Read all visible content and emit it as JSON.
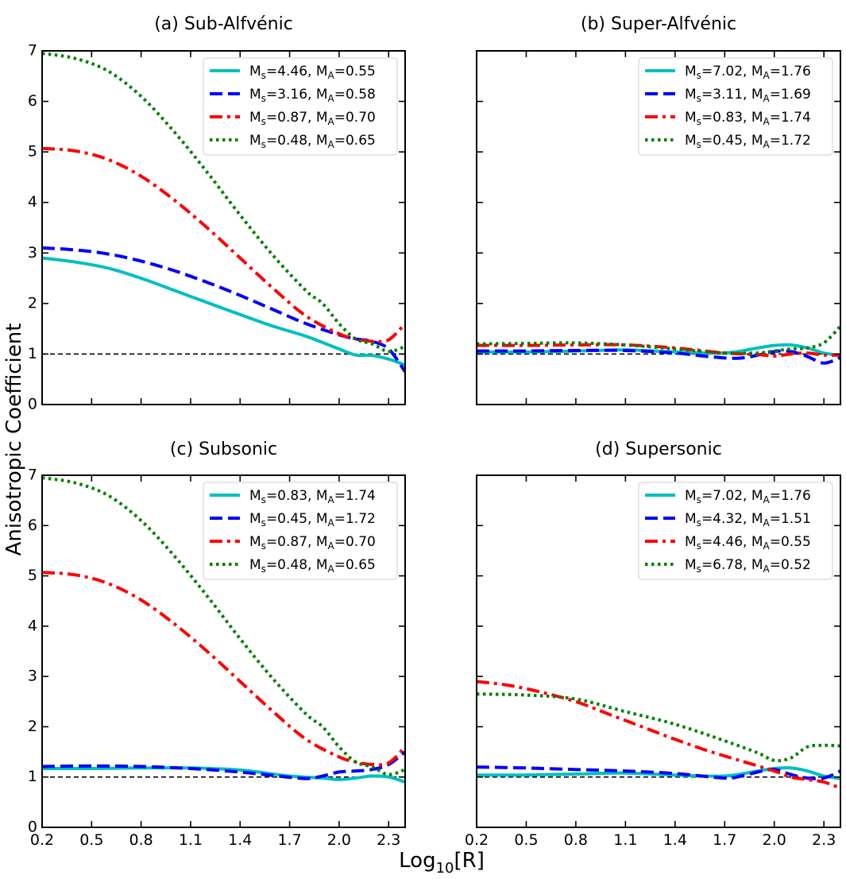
{
  "figure": {
    "ylabel": "Anisotropic Coefficient",
    "xlabel_main": "Log",
    "xlabel_sub": "10",
    "xlabel_tail": "[R]"
  },
  "chart_data": [
    {
      "type": "line",
      "title": "(a) Sub-Alfvénic",
      "xlim": [
        0.2,
        2.4
      ],
      "ylim": [
        0,
        7
      ],
      "xticks": [
        "0.2",
        "0.5",
        "0.8",
        "1.1",
        "1.4",
        "1.7",
        "2.0",
        "2.3"
      ],
      "yticks": [
        "0",
        "1",
        "2",
        "3",
        "4",
        "5",
        "6",
        "7"
      ],
      "show_xticklabels": false,
      "show_yticklabels": true,
      "reference_line_y": 1,
      "legend_position": "top-right",
      "series": [
        {
          "name": "M_s=4.46, M_A=0.55",
          "ms": "4.46",
          "ma": "0.55",
          "color": "#00bfbf",
          "style": "solid",
          "x": [
            0.2,
            0.4,
            0.6,
            0.8,
            1.0,
            1.2,
            1.4,
            1.6,
            1.8,
            2.0,
            2.1,
            2.2,
            2.3,
            2.4
          ],
          "y": [
            2.9,
            2.82,
            2.7,
            2.5,
            2.26,
            2.02,
            1.78,
            1.55,
            1.35,
            1.1,
            0.98,
            0.97,
            0.9,
            0.78
          ]
        },
        {
          "name": "M_s=3.16, M_A=0.58",
          "ms": "3.16",
          "ma": "0.58",
          "color": "#0000ff",
          "style": "dashed",
          "x": [
            0.2,
            0.4,
            0.6,
            0.8,
            1.0,
            1.2,
            1.4,
            1.6,
            1.8,
            2.0,
            2.1,
            2.2,
            2.3,
            2.4
          ],
          "y": [
            3.1,
            3.06,
            2.98,
            2.84,
            2.65,
            2.42,
            2.16,
            1.88,
            1.6,
            1.38,
            1.3,
            1.25,
            1.1,
            0.65
          ]
        },
        {
          "name": "M_s=0.87, M_A=0.70",
          "ms": "0.87",
          "ma": "0.70",
          "color": "#ff0000",
          "style": "dashdot",
          "x": [
            0.2,
            0.4,
            0.6,
            0.8,
            1.0,
            1.2,
            1.4,
            1.6,
            1.8,
            2.0,
            2.1,
            2.2,
            2.3,
            2.4
          ],
          "y": [
            5.07,
            5.02,
            4.85,
            4.52,
            4.05,
            3.5,
            2.9,
            2.3,
            1.75,
            1.4,
            1.3,
            1.25,
            1.28,
            1.6
          ]
        },
        {
          "name": "M_s=0.48, M_A=0.65",
          "ms": "0.48",
          "ma": "0.65",
          "color": "#008000",
          "style": "dotted",
          "x": [
            0.2,
            0.4,
            0.6,
            0.8,
            1.0,
            1.2,
            1.4,
            1.6,
            1.8,
            1.9,
            2.0,
            2.1,
            2.2,
            2.3,
            2.4
          ],
          "y": [
            6.95,
            6.85,
            6.6,
            6.1,
            5.4,
            4.6,
            3.75,
            2.95,
            2.25,
            2.0,
            1.6,
            1.3,
            1.2,
            1.05,
            1.15
          ]
        }
      ]
    },
    {
      "type": "line",
      "title": "(b) Super-Alfvénic",
      "xlim": [
        0.2,
        2.4
      ],
      "ylim": [
        0,
        7
      ],
      "xticks": [
        "0.2",
        "0.5",
        "0.8",
        "1.1",
        "1.4",
        "1.7",
        "2.0",
        "2.3"
      ],
      "yticks": [
        "0",
        "1",
        "2",
        "3",
        "4",
        "5",
        "6",
        "7"
      ],
      "show_xticklabels": false,
      "show_yticklabels": false,
      "reference_line_y": 1,
      "legend_position": "top-right",
      "series": [
        {
          "name": "M_s=7.02, M_A=1.76",
          "ms": "7.02",
          "ma": "1.76",
          "color": "#00bfbf",
          "style": "solid",
          "x": [
            0.2,
            0.5,
            0.8,
            1.1,
            1.4,
            1.7,
            1.9,
            2.0,
            2.1,
            2.2,
            2.3,
            2.4
          ],
          "y": [
            1.04,
            1.04,
            1.06,
            1.08,
            1.04,
            1.02,
            1.12,
            1.17,
            1.18,
            1.12,
            1.02,
            0.97
          ]
        },
        {
          "name": "M_s=3.11, M_A=1.69",
          "ms": "3.11",
          "ma": "1.69",
          "color": "#0000ff",
          "style": "dashed",
          "x": [
            0.2,
            0.5,
            0.8,
            1.1,
            1.4,
            1.6,
            1.8,
            2.0,
            2.1,
            2.2,
            2.3,
            2.4
          ],
          "y": [
            1.06,
            1.06,
            1.07,
            1.07,
            1.02,
            0.95,
            0.92,
            1.05,
            1.05,
            0.95,
            0.82,
            0.93
          ]
        },
        {
          "name": "M_s=0.83, M_A=1.74",
          "ms": "0.83",
          "ma": "1.74",
          "color": "#ff0000",
          "style": "dashdot",
          "x": [
            0.2,
            0.5,
            0.8,
            1.1,
            1.4,
            1.7,
            1.9,
            2.0,
            2.1,
            2.2,
            2.3,
            2.4
          ],
          "y": [
            1.17,
            1.17,
            1.18,
            1.18,
            1.12,
            1.02,
            0.99,
            0.96,
            1.0,
            1.02,
            0.98,
            0.98
          ]
        },
        {
          "name": "M_s=0.45, M_A=1.72",
          "ms": "0.45",
          "ma": "1.72",
          "color": "#008000",
          "style": "dotted",
          "x": [
            0.2,
            0.5,
            0.8,
            1.1,
            1.4,
            1.7,
            1.9,
            2.0,
            2.1,
            2.2,
            2.3,
            2.4
          ],
          "y": [
            1.2,
            1.21,
            1.22,
            1.18,
            1.1,
            1.02,
            1.02,
            1.06,
            1.1,
            1.12,
            1.22,
            1.55
          ]
        }
      ]
    },
    {
      "type": "line",
      "title": "(c) Subsonic",
      "xlim": [
        0.2,
        2.4
      ],
      "ylim": [
        0,
        7
      ],
      "xticks": [
        "0.2",
        "0.5",
        "0.8",
        "1.1",
        "1.4",
        "1.7",
        "2.0",
        "2.3"
      ],
      "yticks": [
        "0",
        "1",
        "2",
        "3",
        "4",
        "5",
        "6",
        "7"
      ],
      "show_xticklabels": true,
      "show_yticklabels": true,
      "reference_line_y": 1,
      "legend_position": "top-right",
      "series": [
        {
          "name": "M_s=0.83, M_A=1.74",
          "ms": "0.83",
          "ma": "1.74",
          "color": "#00bfbf",
          "style": "solid",
          "x": [
            0.2,
            0.5,
            0.8,
            1.1,
            1.4,
            1.7,
            1.9,
            2.0,
            2.1,
            2.2,
            2.3,
            2.4
          ],
          "y": [
            1.17,
            1.17,
            1.18,
            1.18,
            1.14,
            1.02,
            0.98,
            0.95,
            0.98,
            1.02,
            1.0,
            0.9
          ]
        },
        {
          "name": "M_s=0.45, M_A=1.72",
          "ms": "0.45",
          "ma": "1.72",
          "color": "#0000ff",
          "style": "dashed",
          "x": [
            0.2,
            0.5,
            0.8,
            1.1,
            1.4,
            1.6,
            1.8,
            1.9,
            2.0,
            2.1,
            2.2,
            2.3,
            2.4
          ],
          "y": [
            1.21,
            1.22,
            1.21,
            1.17,
            1.1,
            1.03,
            0.97,
            1.02,
            1.1,
            1.12,
            1.15,
            1.25,
            1.5
          ]
        },
        {
          "name": "M_s=0.87, M_A=0.70",
          "ms": "0.87",
          "ma": "0.70",
          "color": "#ff0000",
          "style": "dashdot",
          "x": [
            0.2,
            0.4,
            0.6,
            0.8,
            1.0,
            1.2,
            1.4,
            1.6,
            1.8,
            2.0,
            2.1,
            2.2,
            2.3,
            2.4
          ],
          "y": [
            5.07,
            5.02,
            4.85,
            4.52,
            4.05,
            3.5,
            2.9,
            2.3,
            1.75,
            1.4,
            1.3,
            1.25,
            1.28,
            1.6
          ]
        },
        {
          "name": "M_s=0.48, M_A=0.65",
          "ms": "0.48",
          "ma": "0.65",
          "color": "#008000",
          "style": "dotted",
          "x": [
            0.2,
            0.4,
            0.6,
            0.8,
            1.0,
            1.2,
            1.4,
            1.6,
            1.8,
            1.9,
            2.0,
            2.1,
            2.2,
            2.3,
            2.4
          ],
          "y": [
            6.95,
            6.85,
            6.6,
            6.1,
            5.4,
            4.6,
            3.75,
            2.95,
            2.25,
            2.0,
            1.6,
            1.3,
            1.2,
            1.05,
            1.15
          ]
        }
      ]
    },
    {
      "type": "line",
      "title": "(d) Supersonic",
      "xlim": [
        0.2,
        2.4
      ],
      "ylim": [
        0,
        7
      ],
      "xticks": [
        "0.2",
        "0.5",
        "0.8",
        "1.1",
        "1.4",
        "1.7",
        "2.0",
        "2.3"
      ],
      "yticks": [
        "0",
        "1",
        "2",
        "3",
        "4",
        "5",
        "6",
        "7"
      ],
      "show_xticklabels": true,
      "show_yticklabels": false,
      "reference_line_y": 1,
      "legend_position": "top-right",
      "series": [
        {
          "name": "M_s=7.02, M_A=1.76",
          "ms": "7.02",
          "ma": "1.76",
          "color": "#00bfbf",
          "style": "solid",
          "x": [
            0.2,
            0.5,
            0.8,
            1.1,
            1.4,
            1.7,
            1.9,
            2.0,
            2.1,
            2.2,
            2.3,
            2.4
          ],
          "y": [
            1.04,
            1.04,
            1.06,
            1.08,
            1.04,
            1.02,
            1.12,
            1.17,
            1.18,
            1.12,
            1.02,
            0.97
          ]
        },
        {
          "name": "M_s=4.32, M_A=1.51",
          "ms": "4.32",
          "ma": "1.51",
          "color": "#0000ff",
          "style": "dashed",
          "x": [
            0.2,
            0.5,
            0.8,
            1.1,
            1.4,
            1.7,
            1.8,
            1.9,
            2.0,
            2.1,
            2.2,
            2.3,
            2.4
          ],
          "y": [
            1.2,
            1.18,
            1.15,
            1.12,
            1.07,
            0.98,
            1.02,
            1.1,
            1.15,
            1.05,
            0.98,
            0.98,
            1.12
          ]
        },
        {
          "name": "M_s=4.46, M_A=0.55",
          "ms": "4.46",
          "ma": "0.55",
          "color": "#ff0000",
          "style": "dashdot",
          "x": [
            0.2,
            0.4,
            0.6,
            0.8,
            1.0,
            1.2,
            1.4,
            1.6,
            1.8,
            2.0,
            2.1,
            2.2,
            2.3,
            2.4
          ],
          "y": [
            2.9,
            2.82,
            2.68,
            2.5,
            2.25,
            2.0,
            1.75,
            1.52,
            1.32,
            1.12,
            1.0,
            0.95,
            0.9,
            0.78
          ]
        },
        {
          "name": "M_s=6.78, M_A=0.52",
          "ms": "6.78",
          "ma": "0.52",
          "color": "#008000",
          "style": "dotted",
          "x": [
            0.2,
            0.5,
            0.8,
            1.1,
            1.4,
            1.7,
            1.9,
            2.0,
            2.1,
            2.2,
            2.3,
            2.4
          ],
          "y": [
            2.65,
            2.63,
            2.55,
            2.3,
            2.05,
            1.72,
            1.48,
            1.33,
            1.38,
            1.6,
            1.63,
            1.62
          ]
        }
      ]
    }
  ]
}
